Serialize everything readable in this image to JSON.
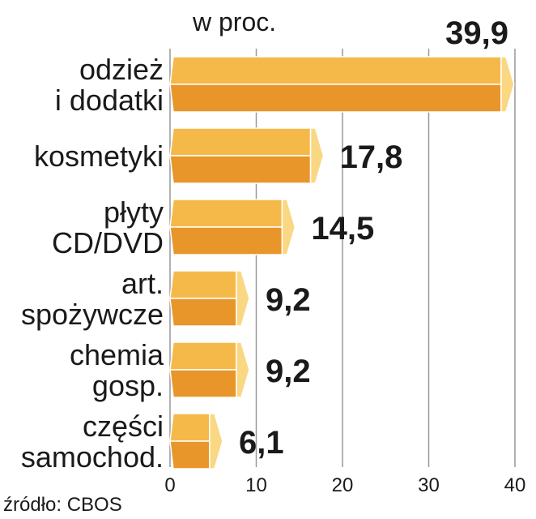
{
  "chart_data": {
    "type": "bar",
    "orientation": "horizontal",
    "unit": "w proc.",
    "source": "źródło: CBOS",
    "categories": [
      [
        "odzież",
        "i dodatki"
      ],
      [
        "kosmetyki"
      ],
      [
        "płyty",
        "CD/DVD"
      ],
      [
        "art.",
        "spożywcze"
      ],
      [
        "chemia",
        "gosp."
      ],
      [
        "części",
        "samochod."
      ]
    ],
    "values": [
      39.9,
      17.8,
      14.5,
      9.2,
      9.2,
      6.1
    ],
    "value_labels": [
      "39,9",
      "17,8",
      "14,5",
      "9,2",
      "9,2",
      "6,1"
    ],
    "xlim": [
      0,
      40
    ],
    "xticks": [
      0,
      10,
      20,
      30,
      40
    ],
    "grid": true,
    "colors": {
      "bar_top": "#f5b94a",
      "bar_bottom": "#e8962a",
      "bar_cap": "#fad783",
      "bar_edge": "#ffffff",
      "grid": "#999999"
    }
  }
}
